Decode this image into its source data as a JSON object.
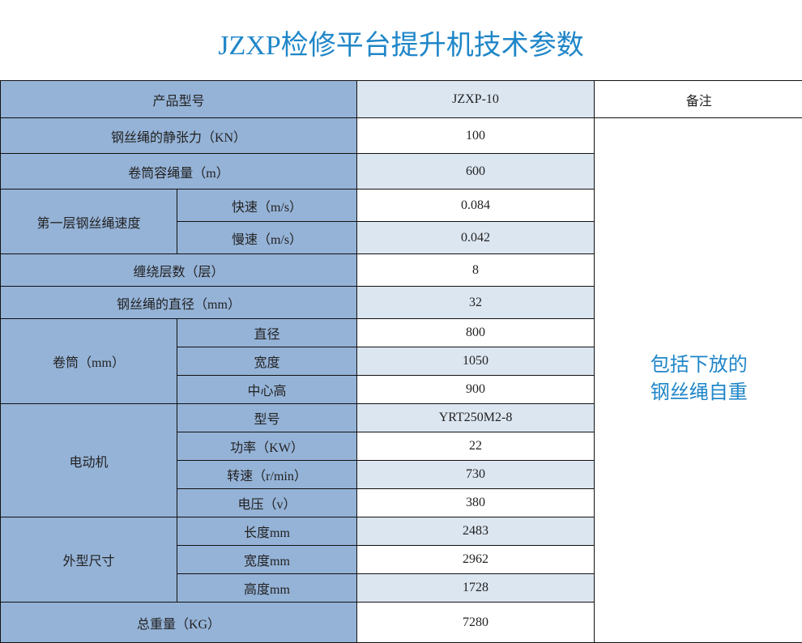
{
  "title": "JZXP检修平台提升机技术参数",
  "colors": {
    "label_bg": "#95b3d7",
    "alt_bg": "#dce6f1",
    "accent": "#1f86c8"
  },
  "header": {
    "label": "产品型号",
    "model": "JZXP-10",
    "remark": "备注"
  },
  "remark_note": {
    "line1": "包括下放的",
    "line2": "钢丝绳自重"
  },
  "rows": {
    "static_tension": {
      "label": "钢丝绳的静张力（KN）",
      "value": "100"
    },
    "drum_capacity": {
      "label": "卷筒容绳量（m）",
      "value": "600"
    },
    "speed": {
      "group": "第一层钢丝绳速度",
      "fast": "快速（m/s）",
      "fast_value": "0.084",
      "slow": "慢速（m/s）",
      "slow_value": "0.042"
    },
    "layers": {
      "label": "缠绕层数（层）",
      "value": "8"
    },
    "rope_diameter": {
      "label": "钢丝绳的直径（mm）",
      "value": "32"
    },
    "drum": {
      "group": "卷筒（mm）",
      "diameter": "直径",
      "diameter_value": "800",
      "width": "宽度",
      "width_value": "1050",
      "center": "中心高",
      "center_value": "900"
    },
    "motor": {
      "group": "电动机",
      "model": "型号",
      "model_value": "YRT250M2-8",
      "power": "功率（KW）",
      "power_value": "22",
      "speed": "转速（r/min）",
      "speed_value": "730",
      "voltage": "电压（v）",
      "voltage_value": "380"
    },
    "dimensions": {
      "group": "外型尺寸",
      "length": "长度mm",
      "length_value": "2483",
      "width": "宽度mm",
      "width_value": "2962",
      "height": "高度mm",
      "height_value": "1728"
    },
    "total_weight": {
      "label": "总重量（KG）",
      "value": "7280"
    }
  }
}
